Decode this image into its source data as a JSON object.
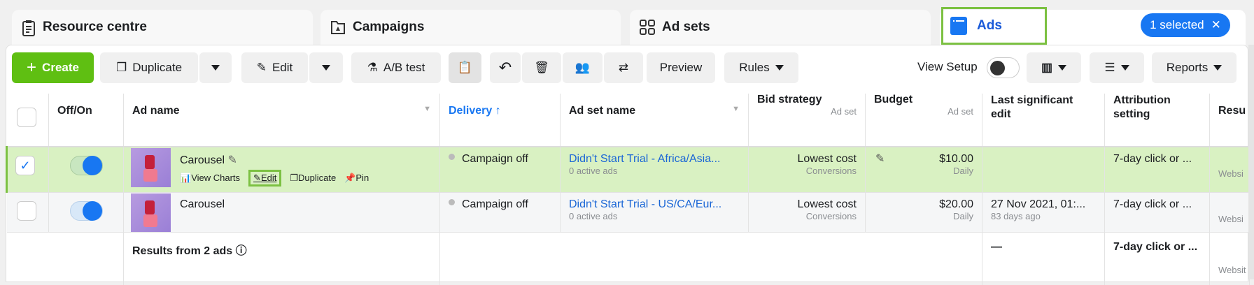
{
  "tabs": [
    {
      "label": "Resource centre",
      "icon": "clipboard-icon"
    },
    {
      "label": "Campaigns",
      "icon": "folder-icon"
    },
    {
      "label": "Ad sets",
      "icon": "grid-icon"
    },
    {
      "label": "Ads",
      "icon": "ad-window-icon",
      "active": true
    }
  ],
  "selection": {
    "label": "1 selected"
  },
  "toolbar": {
    "create": "Create",
    "duplicate": "Duplicate",
    "edit": "Edit",
    "ab_test": "A/B test",
    "preview": "Preview",
    "rules": "Rules",
    "view_setup": "View Setup",
    "view_setup_on": false,
    "reports": "Reports"
  },
  "table": {
    "headers": {
      "off_on": "Off/On",
      "ad_name": "Ad name",
      "delivery": "Delivery",
      "ad_set_name": "Ad set name",
      "bid_strategy": "Bid strategy",
      "bid_sub": "Ad set",
      "budget": "Budget",
      "budget_sub": "Ad set",
      "last_edit": "Last significant edit",
      "attribution": "Attribution setting",
      "results": "Resu"
    },
    "row_actions": {
      "view_charts": "View Charts",
      "edit": "Edit",
      "duplicate": "Duplicate",
      "pin": "Pin"
    },
    "rows": [
      {
        "selected": true,
        "on": true,
        "ad_name": "Carousel",
        "delivery": "Campaign off",
        "ad_set": "Didn't Start Trial - Africa/Asia...",
        "ad_set_sub": "0 active ads",
        "bid": "Lowest cost",
        "bid_sub": "Conversions",
        "budget": "$10.00",
        "budget_sub": "Daily",
        "last_edit": "",
        "last_edit_sub": "",
        "attribution": "7-day click or ...",
        "results_sub": "Websi"
      },
      {
        "selected": false,
        "on": true,
        "ad_name": "Carousel",
        "delivery": "Campaign off",
        "ad_set": "Didn't Start Trial - US/CA/Eur...",
        "ad_set_sub": "0 active ads",
        "bid": "Lowest cost",
        "bid_sub": "Conversions",
        "budget": "$20.00",
        "budget_sub": "Daily",
        "last_edit": "27 Nov 2021, 01:...",
        "last_edit_sub": "83 days ago",
        "attribution": "7-day click or ...",
        "results_sub": "Websi"
      }
    ],
    "footer": {
      "label": "Results from 2 ads",
      "last_edit": "—",
      "attribution": "7-day click or ...",
      "results_sub": "Websit"
    }
  },
  "colors": {
    "accent": "#1877f2",
    "create": "#5fbf12",
    "selected_row": "#d9f1c2",
    "highlight": "#7cc142"
  }
}
